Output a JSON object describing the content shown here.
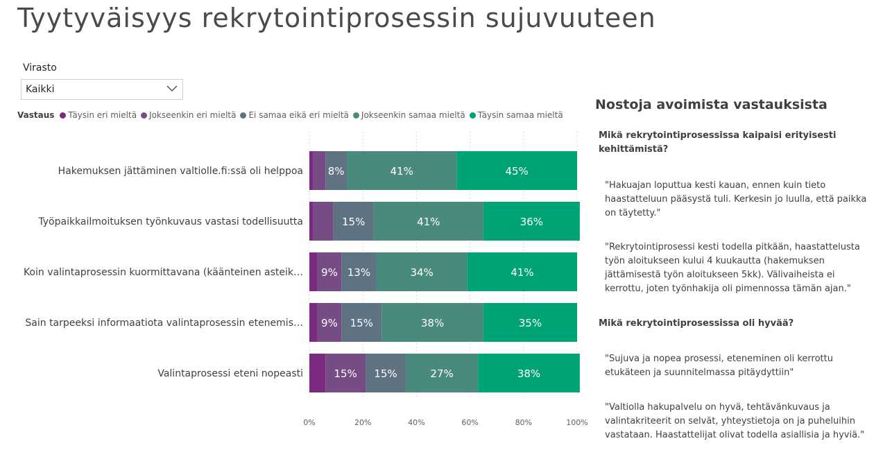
{
  "page": {
    "title": "Tyytyväisyys rekrytointiprosessin sujuvuuteen"
  },
  "slicer": {
    "label": "Virasto",
    "value": "Kaikki"
  },
  "legend": {
    "title": "Vastaus"
  },
  "chart_data": {
    "type": "bar",
    "orientation": "horizontal",
    "stacked": "100%",
    "categories": [
      "Hakemuksen jättäminen valtiolle.fi:ssä oli helppoa",
      "Työpaikkailmoituksen työnkuvaus vastasi todellisuutta",
      "Koin valintaprosessin kuormittavana (käänteinen asteik…",
      "Sain tarpeeksi informaatiota valintaprosessin etenemis…",
      "Valintaprosessi eteni nopeasti"
    ],
    "series": [
      {
        "name": "Täysin eri mieltä",
        "color": "#7a2a7f",
        "values": [
          1.5,
          1.5,
          3,
          3,
          6
        ]
      },
      {
        "name": "Jokseenkin eri mieltä",
        "color": "#764c84",
        "values": [
          4.5,
          7.5,
          9,
          9,
          15
        ]
      },
      {
        "name": "Ei samaa eikä eri mieltä",
        "color": "#5f7281",
        "values": [
          8,
          15,
          13,
          15,
          15
        ]
      },
      {
        "name": "Jokseenkin samaa mieltä",
        "color": "#4a8a7c",
        "values": [
          41,
          41,
          34,
          38,
          27
        ]
      },
      {
        "name": "Täysin samaa mieltä",
        "color": "#00a376",
        "values": [
          45,
          36,
          41,
          35,
          38
        ]
      }
    ],
    "data_labels": [
      [
        "",
        "",
        "8%",
        "41%",
        "45%"
      ],
      [
        "",
        "",
        "15%",
        "41%",
        "36%"
      ],
      [
        "",
        "9%",
        "13%",
        "34%",
        "41%"
      ],
      [
        "",
        "9%",
        "15%",
        "38%",
        "35%"
      ],
      [
        "",
        "15%",
        "15%",
        "27%",
        "38%"
      ]
    ],
    "xlim": [
      0,
      100
    ],
    "xticks": [
      "0%",
      "20%",
      "40%",
      "60%",
      "80%",
      "100%"
    ],
    "grid": true,
    "legend_position": "top-left"
  },
  "panel": {
    "title": "Nostoja avoimista vastauksista",
    "question1": "Mikä rekrytointiprosessissa kaipaisi erityisesti kehittämistä?",
    "quote1": "\"Hakuajan loputtua kesti kauan, ennen kuin tieto haastatteluun pääsystä tuli. Kerkesin jo luulla, että paikka on täytetty.\"",
    "quote2": "\"Rekrytointiprosessi kesti todella pitkään, haastattelusta työn aloitukseen kului 4 kuukautta (hakemuksen jättämisestä työn aloitukseen 5kk). Välivaiheista ei kerrottu, joten työnhakija oli pimennossa tämän ajan.\"",
    "question2": "Mikä rekrytointiprosessissa oli hyvää?",
    "quote3": "\"Sujuva ja nopea prosessi, eteneminen oli kerrottu etukäteen ja suunnitelmassa pitäydyttiin\"",
    "quote4": "\"Valtiolla hakupalvelu on hyvä, tehtävänkuvaus ja valintakriteerit on selvät, yhteystietoja on ja puheluihin vastataan. Haastattelijat olivat todella asiallisia ja hyviä.\""
  }
}
